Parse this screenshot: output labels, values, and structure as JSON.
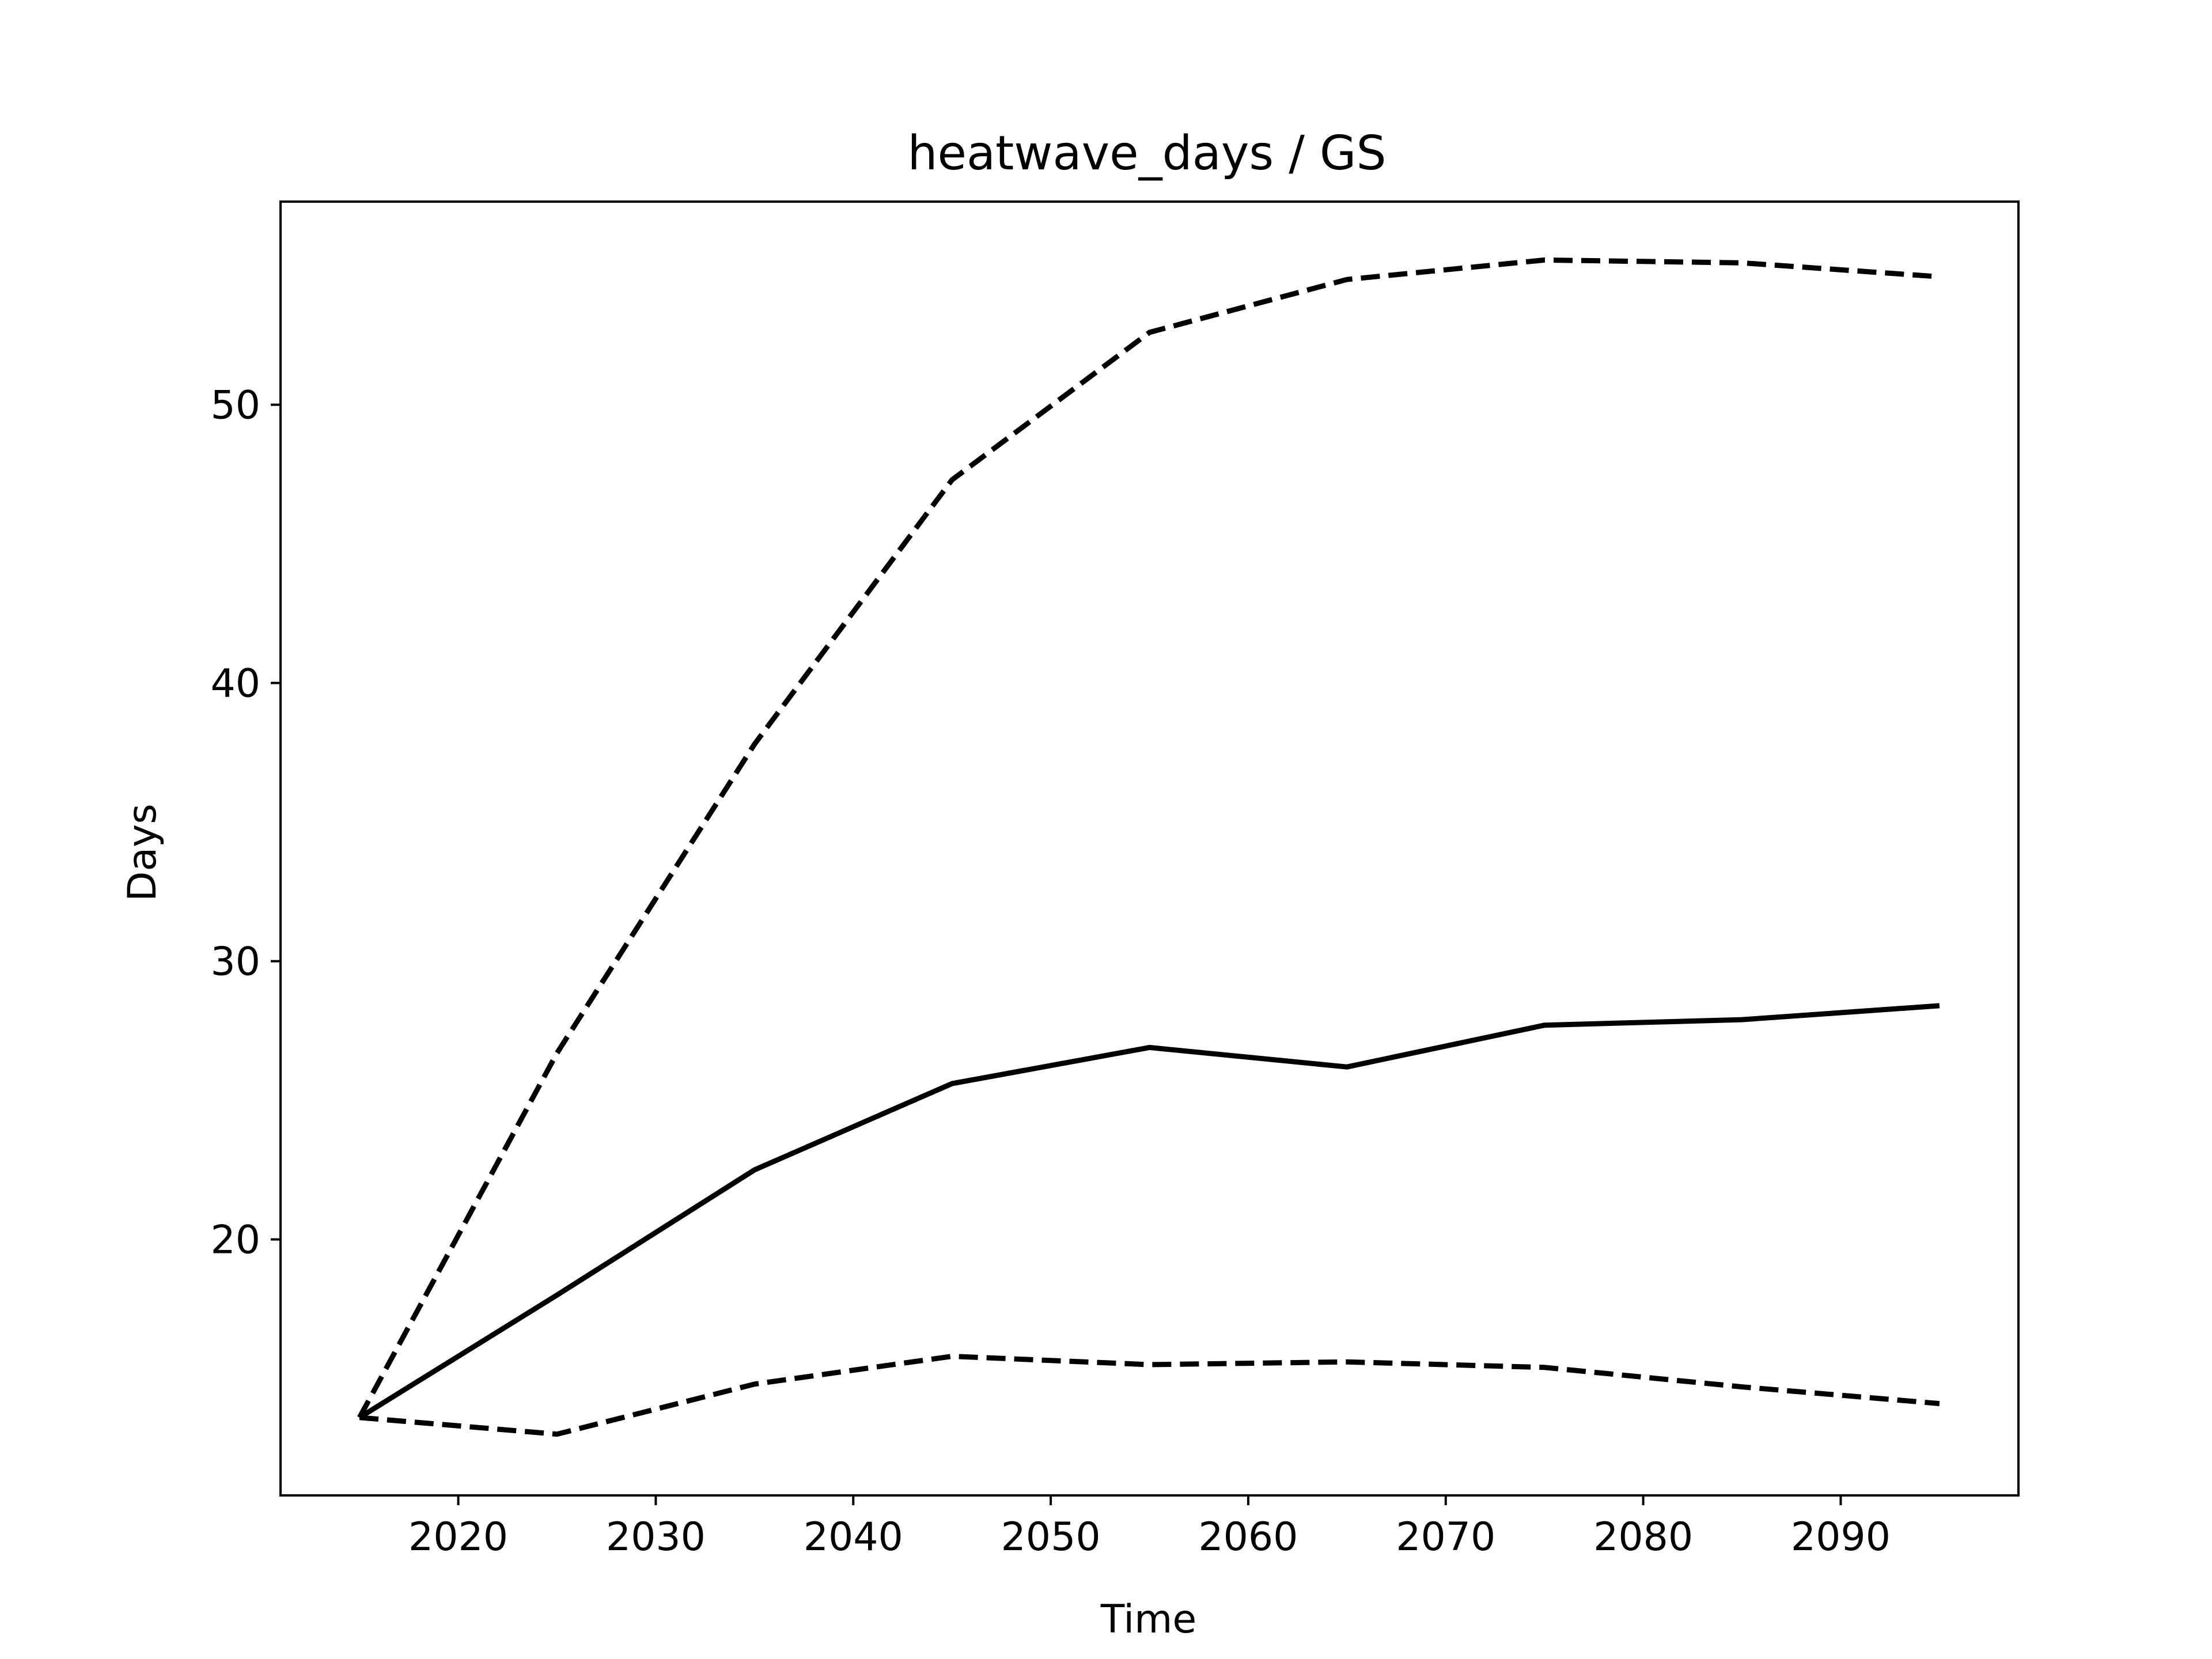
{
  "chart_data": {
    "type": "line",
    "title": "heatwave_days / GS",
    "xlabel": "Time",
    "ylabel": "Days",
    "xlim": [
      2011,
      2099
    ],
    "ylim": [
      10.8,
      57.3
    ],
    "x_ticks": [
      2020,
      2030,
      2040,
      2050,
      2060,
      2070,
      2080,
      2090
    ],
    "x_tick_labels": [
      "2020",
      "2030",
      "2040",
      "2050",
      "2060",
      "2070",
      "2080",
      "2090"
    ],
    "y_ticks": [
      20,
      30,
      40,
      50
    ],
    "y_tick_labels": [
      "20",
      "30",
      "40",
      "50"
    ],
    "grid": false,
    "legend": false,
    "x": [
      2015,
      2025,
      2035,
      2045,
      2055,
      2065,
      2075,
      2085,
      2095
    ],
    "series": [
      {
        "style": "dashed",
        "color": "#000000",
        "values": [
          13.6,
          26.7,
          37.8,
          47.3,
          52.6,
          54.5,
          55.2,
          55.1,
          54.6
        ]
      },
      {
        "style": "solid",
        "color": "#000000",
        "values": [
          13.6,
          18.0,
          22.5,
          25.6,
          26.9,
          26.2,
          27.7,
          27.9,
          28.4
        ]
      },
      {
        "style": "dashed",
        "color": "#000000",
        "values": [
          13.6,
          13.0,
          14.8,
          15.8,
          15.5,
          15.6,
          15.4,
          14.7,
          14.1
        ]
      }
    ]
  }
}
